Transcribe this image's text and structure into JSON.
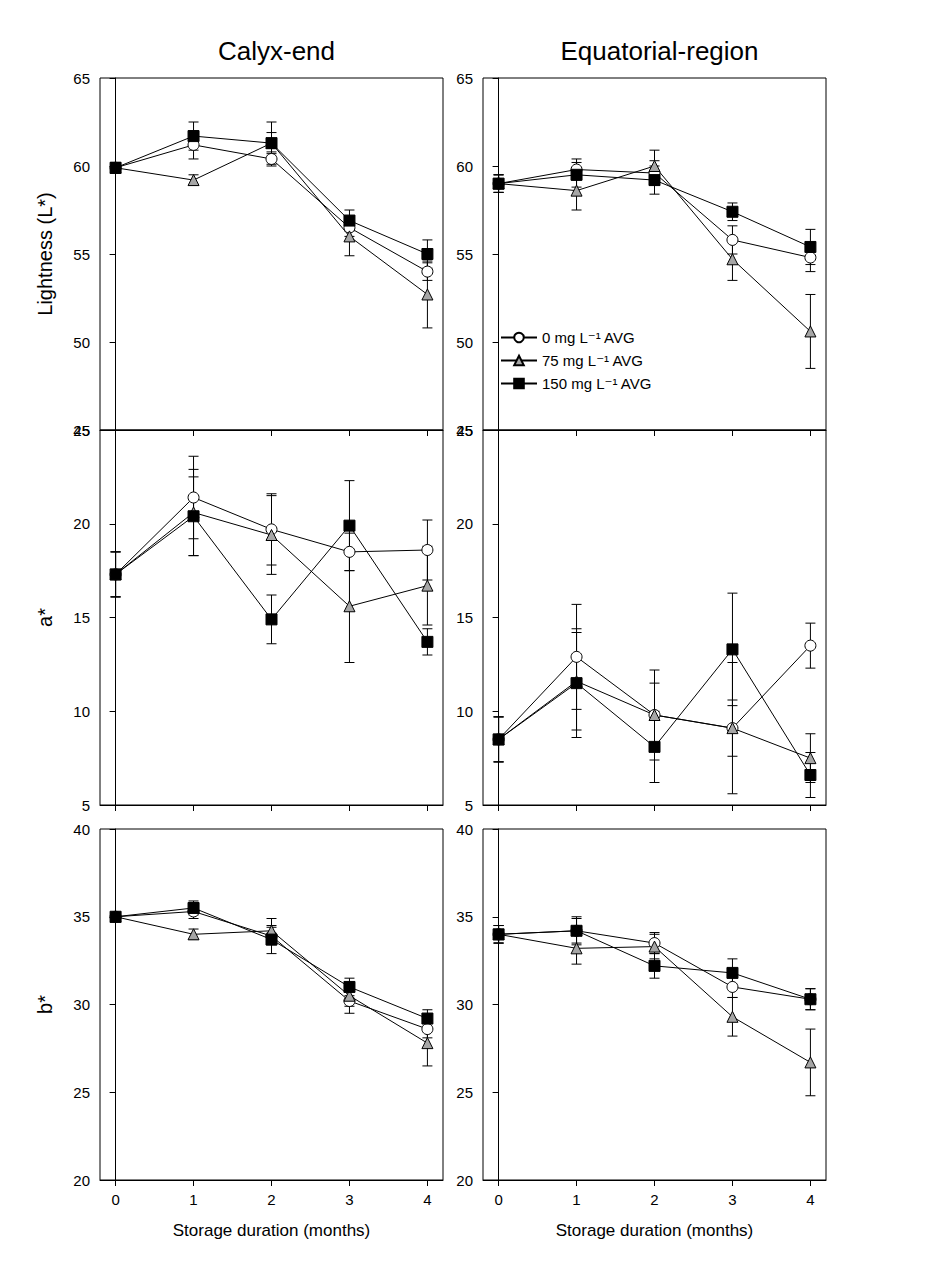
{
  "chart_data": [
    {
      "type": "line",
      "title": "Calyx-end",
      "y_label": "Lightness (L*)",
      "x": [
        0,
        1,
        2,
        3,
        4
      ],
      "xlim": [
        -0.2,
        4.2
      ],
      "xticks": [
        0,
        1,
        2,
        3,
        4
      ],
      "ylim": [
        45,
        65
      ],
      "yticks": [
        45,
        50,
        55,
        60,
        65
      ],
      "tick_labels": "y",
      "series": [
        {
          "name": "0 mg L⁻¹ AVG",
          "color": "#ffffff",
          "marker": "circle",
          "values": [
            59.9,
            61.2,
            60.4,
            56.5,
            54.0
          ],
          "errors": [
            0.3,
            0.8,
            0.4,
            0.5,
            0.5
          ]
        },
        {
          "name": "75 mg L⁻¹ AVG",
          "color": "#a6a6a6",
          "marker": "triangle",
          "values": [
            59.9,
            59.2,
            61.3,
            56.0,
            52.7
          ],
          "errors": [
            0.3,
            0.3,
            0.6,
            1.1,
            1.9
          ]
        },
        {
          "name": "150 mg L⁻¹ AVG",
          "color": "#000000",
          "marker": "square",
          "values": [
            59.9,
            61.7,
            61.3,
            56.9,
            55.0
          ],
          "errors": [
            0.3,
            0.8,
            1.2,
            0.6,
            0.8
          ]
        }
      ]
    },
    {
      "type": "line",
      "title": "Equatorial-region",
      "legend": "lower-left",
      "x": [
        0,
        1,
        2,
        3,
        4
      ],
      "xlim": [
        -0.2,
        4.2
      ],
      "xticks": [
        0,
        1,
        2,
        3,
        4
      ],
      "ylim": [
        45,
        65
      ],
      "yticks": [
        45,
        50,
        55,
        60,
        65
      ],
      "tick_labels": "y",
      "series": [
        {
          "name": "0 mg L⁻¹ AVG",
          "color": "#ffffff",
          "marker": "circle",
          "values": [
            59.0,
            59.8,
            59.6,
            55.8,
            54.8
          ],
          "errors": [
            0.5,
            0.6,
            0.7,
            0.8,
            0.8
          ]
        },
        {
          "name": "75 mg L⁻¹ AVG",
          "color": "#a6a6a6",
          "marker": "triangle",
          "values": [
            59.0,
            58.6,
            60.0,
            54.7,
            50.6
          ],
          "errors": [
            0.5,
            1.1,
            0.9,
            1.2,
            2.1
          ]
        },
        {
          "name": "150 mg L⁻¹ AVG",
          "color": "#000000",
          "marker": "square",
          "values": [
            59.0,
            59.5,
            59.2,
            57.4,
            55.4
          ],
          "errors": [
            0.5,
            0.7,
            0.8,
            0.5,
            1.0
          ]
        }
      ]
    },
    {
      "type": "line",
      "y_label": "a*",
      "x": [
        0,
        1,
        2,
        3,
        4
      ],
      "xlim": [
        -0.2,
        4.2
      ],
      "xticks": [
        0,
        1,
        2,
        3,
        4
      ],
      "ylim": [
        5,
        25
      ],
      "yticks": [
        5,
        10,
        15,
        20,
        25
      ],
      "tick_labels": "y",
      "series": [
        {
          "name": "0 mg L⁻¹ AVG",
          "color": "#ffffff",
          "marker": "circle",
          "values": [
            17.3,
            21.4,
            19.7,
            18.5,
            18.6
          ],
          "errors": [
            1.2,
            2.2,
            1.9,
            1.0,
            1.6
          ]
        },
        {
          "name": "75 mg L⁻¹ AVG",
          "color": "#a6a6a6",
          "marker": "triangle",
          "values": [
            17.3,
            20.6,
            19.4,
            15.6,
            16.7
          ],
          "errors": [
            1.2,
            2.3,
            2.1,
            3.0,
            2.1
          ]
        },
        {
          "name": "150 mg L⁻¹ AVG",
          "color": "#000000",
          "marker": "square",
          "values": [
            17.3,
            20.4,
            14.9,
            19.9,
            13.7
          ],
          "errors": [
            1.2,
            2.1,
            1.3,
            2.4,
            0.7
          ]
        }
      ]
    },
    {
      "type": "line",
      "x": [
        0,
        1,
        2,
        3,
        4
      ],
      "xlim": [
        -0.2,
        4.2
      ],
      "xticks": [
        0,
        1,
        2,
        3,
        4
      ],
      "ylim": [
        5,
        25
      ],
      "yticks": [
        5,
        10,
        15,
        20,
        25
      ],
      "tick_labels": "y",
      "series": [
        {
          "name": "0 mg L⁻¹ AVG",
          "color": "#ffffff",
          "marker": "circle",
          "values": [
            8.5,
            12.9,
            9.8,
            9.1,
            13.5
          ],
          "errors": [
            1.2,
            2.8,
            2.4,
            1.5,
            1.2
          ]
        },
        {
          "name": "75 mg L⁻¹ AVG",
          "color": "#a6a6a6",
          "marker": "triangle",
          "values": [
            8.5,
            11.6,
            9.8,
            9.1,
            7.5
          ],
          "errors": [
            1.2,
            2.6,
            1.7,
            3.5,
            1.3
          ]
        },
        {
          "name": "150 mg L⁻¹ AVG",
          "color": "#000000",
          "marker": "square",
          "values": [
            8.5,
            11.5,
            8.1,
            13.3,
            6.6
          ],
          "errors": [
            1.2,
            2.9,
            1.9,
            3.0,
            1.2
          ]
        }
      ]
    },
    {
      "type": "line",
      "y_label": "b*",
      "x_label": "Storage duration (months)",
      "x": [
        0,
        1,
        2,
        3,
        4
      ],
      "xlim": [
        -0.2,
        4.2
      ],
      "xticks": [
        0,
        1,
        2,
        3,
        4
      ],
      "ylim": [
        20,
        40
      ],
      "yticks": [
        20,
        25,
        30,
        35,
        40
      ],
      "series": [
        {
          "name": "0 mg L⁻¹ AVG",
          "color": "#ffffff",
          "marker": "circle",
          "values": [
            35.0,
            35.3,
            33.9,
            30.2,
            28.6
          ],
          "errors": [
            0.2,
            0.4,
            0.5,
            0.7,
            0.5
          ]
        },
        {
          "name": "75 mg L⁻¹ AVG",
          "color": "#a6a6a6",
          "marker": "triangle",
          "values": [
            35.0,
            34.0,
            34.2,
            30.5,
            27.8
          ],
          "errors": [
            0.2,
            0.3,
            0.7,
            0.6,
            1.3
          ]
        },
        {
          "name": "150 mg L⁻¹ AVG",
          "color": "#000000",
          "marker": "square",
          "values": [
            35.0,
            35.5,
            33.7,
            31.0,
            29.2
          ],
          "errors": [
            0.2,
            0.4,
            0.8,
            0.5,
            0.5
          ]
        }
      ]
    },
    {
      "type": "line",
      "x_label": "Storage duration (months)",
      "x": [
        0,
        1,
        2,
        3,
        4
      ],
      "xlim": [
        -0.2,
        4.2
      ],
      "xticks": [
        0,
        1,
        2,
        3,
        4
      ],
      "ylim": [
        20,
        40
      ],
      "yticks": [
        20,
        25,
        30,
        35,
        40
      ],
      "series": [
        {
          "name": "0 mg L⁻¹ AVG",
          "color": "#ffffff",
          "marker": "circle",
          "values": [
            34.0,
            34.2,
            33.5,
            31.0,
            30.3
          ],
          "errors": [
            0.5,
            0.7,
            0.6,
            0.6,
            0.6
          ]
        },
        {
          "name": "75 mg L⁻¹ AVG",
          "color": "#a6a6a6",
          "marker": "triangle",
          "values": [
            34.0,
            33.2,
            33.3,
            29.3,
            26.7
          ],
          "errors": [
            0.5,
            0.9,
            0.7,
            1.1,
            1.9
          ]
        },
        {
          "name": "150 mg L⁻¹ AVG",
          "color": "#000000",
          "marker": "square",
          "values": [
            34.0,
            34.2,
            32.2,
            31.8,
            30.3
          ],
          "errors": [
            0.5,
            0.8,
            0.7,
            0.8,
            0.6
          ]
        }
      ]
    }
  ]
}
